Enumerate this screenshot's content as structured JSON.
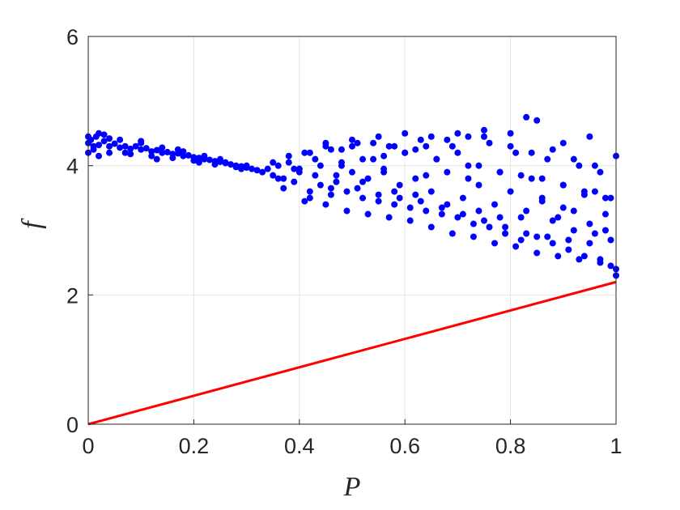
{
  "chart_data": {
    "type": "scatter",
    "xlabel": "P",
    "ylabel": "f",
    "xlim": [
      0,
      1
    ],
    "ylim": [
      0,
      6
    ],
    "x_ticks": [
      0,
      0.2,
      0.4,
      0.6,
      0.8,
      1
    ],
    "x_tick_labels": [
      "0",
      "0.2",
      "0.4",
      "0.6",
      "0.8",
      "1"
    ],
    "y_ticks": [
      0,
      2,
      4,
      6
    ],
    "y_tick_labels": [
      "0",
      "2",
      "4",
      "6"
    ],
    "grid": true,
    "legend": "none",
    "series": [
      {
        "kind": "scatter",
        "color": "#0000ff",
        "x": [
          0.0,
          0.005,
          0.01,
          0.015,
          0.02,
          0.03,
          0.04,
          0.05,
          0.06,
          0.07,
          0.08,
          0.09,
          0.1,
          0.11,
          0.12,
          0.13,
          0.14,
          0.15,
          0.16,
          0.17,
          0.18,
          0.19,
          0.2,
          0.21,
          0.22,
          0.23,
          0.24,
          0.25,
          0.26,
          0.27,
          0.28,
          0.29,
          0.3,
          0.31,
          0.32,
          0.33,
          0.0,
          0.01,
          0.02,
          0.03,
          0.04,
          0.06,
          0.08,
          0.1,
          0.12,
          0.14,
          0.16,
          0.18,
          0.2,
          0.22,
          0.24,
          0.26,
          0.28,
          0.3,
          0.0,
          0.02,
          0.04,
          0.07,
          0.1,
          0.13,
          0.17,
          0.21,
          0.25,
          0.29,
          0.34,
          0.35,
          0.36,
          0.37,
          0.38,
          0.39,
          0.4,
          0.41,
          0.42,
          0.43,
          0.44,
          0.45,
          0.46,
          0.47,
          0.48,
          0.49,
          0.5,
          0.51,
          0.52,
          0.53,
          0.54,
          0.55,
          0.56,
          0.57,
          0.58,
          0.59,
          0.6,
          0.61,
          0.62,
          0.63,
          0.64,
          0.65,
          0.66,
          0.67,
          0.68,
          0.69,
          0.7,
          0.71,
          0.72,
          0.73,
          0.74,
          0.75,
          0.76,
          0.77,
          0.78,
          0.79,
          0.8,
          0.81,
          0.82,
          0.83,
          0.84,
          0.85,
          0.86,
          0.87,
          0.88,
          0.89,
          0.9,
          0.91,
          0.92,
          0.93,
          0.94,
          0.95,
          0.96,
          0.97,
          0.98,
          0.99,
          1.0,
          0.35,
          0.37,
          0.39,
          0.41,
          0.43,
          0.45,
          0.47,
          0.49,
          0.51,
          0.53,
          0.55,
          0.57,
          0.59,
          0.61,
          0.63,
          0.65,
          0.67,
          0.69,
          0.71,
          0.73,
          0.75,
          0.77,
          0.79,
          0.81,
          0.83,
          0.85,
          0.87,
          0.89,
          0.91,
          0.93,
          0.95,
          0.97,
          0.99,
          0.36,
          0.38,
          0.4,
          0.42,
          0.44,
          0.46,
          0.48,
          0.5,
          0.52,
          0.54,
          0.56,
          0.58,
          0.6,
          0.62,
          0.64,
          0.66,
          0.68,
          0.7,
          0.72,
          0.74,
          0.76,
          0.78,
          0.8,
          0.82,
          0.84,
          0.86,
          0.88,
          0.9,
          0.92,
          0.94,
          0.96,
          0.98,
          1.0,
          0.45,
          0.5,
          0.55,
          0.6,
          0.65,
          0.7,
          0.75,
          0.8,
          0.85,
          0.9,
          0.95,
          1.0,
          0.4,
          0.48,
          0.56,
          0.64,
          0.72,
          0.78,
          0.83,
          0.86,
          0.9,
          0.94,
          0.97,
          0.99,
          0.42,
          0.46,
          0.52,
          0.58,
          0.62,
          0.68,
          0.74,
          0.82,
          0.88,
          0.92,
          0.96,
          0.98
        ],
        "y": [
          4.35,
          4.4,
          4.3,
          4.45,
          4.32,
          4.38,
          4.3,
          4.34,
          4.28,
          4.3,
          4.26,
          4.3,
          4.25,
          4.27,
          4.22,
          4.24,
          4.2,
          4.21,
          4.18,
          4.19,
          4.15,
          4.16,
          4.13,
          4.12,
          4.1,
          4.09,
          4.07,
          4.06,
          4.04,
          4.02,
          4.0,
          3.99,
          3.97,
          3.95,
          3.93,
          3.9,
          4.2,
          4.25,
          4.5,
          4.48,
          4.2,
          4.4,
          4.18,
          4.38,
          4.15,
          4.28,
          4.12,
          4.22,
          4.08,
          4.15,
          4.02,
          4.05,
          3.98,
          4.0,
          4.45,
          4.15,
          4.42,
          4.2,
          4.35,
          4.1,
          4.25,
          4.05,
          4.1,
          3.95,
          3.95,
          3.85,
          4.0,
          3.8,
          4.05,
          3.75,
          3.9,
          4.2,
          3.6,
          4.1,
          3.7,
          4.3,
          3.55,
          3.85,
          4.25,
          3.6,
          3.9,
          4.35,
          3.5,
          3.8,
          4.1,
          3.45,
          3.95,
          4.3,
          3.4,
          3.7,
          4.2,
          3.35,
          3.8,
          4.4,
          3.3,
          3.6,
          4.1,
          3.25,
          3.9,
          4.3,
          3.2,
          3.5,
          4.0,
          3.1,
          3.7,
          4.45,
          3.05,
          3.4,
          3.9,
          2.95,
          3.6,
          4.2,
          2.85,
          3.3,
          3.8,
          2.9,
          3.5,
          4.1,
          2.8,
          3.2,
          3.7,
          2.7,
          3.3,
          4.0,
          2.6,
          3.1,
          3.6,
          2.55,
          3.0,
          3.5,
          2.4,
          4.05,
          3.65,
          3.95,
          3.45,
          3.85,
          3.4,
          3.75,
          3.3,
          3.65,
          3.25,
          3.55,
          3.2,
          3.5,
          3.15,
          3.45,
          3.05,
          3.35,
          2.95,
          3.25,
          2.9,
          3.15,
          2.8,
          3.05,
          2.75,
          2.95,
          2.65,
          2.9,
          2.6,
          2.85,
          2.55,
          2.8,
          2.5,
          2.45,
          3.8,
          4.15,
          3.95,
          4.2,
          4.0,
          4.25,
          4.05,
          4.3,
          4.1,
          4.35,
          4.15,
          4.3,
          4.2,
          4.25,
          4.3,
          4.1,
          4.4,
          4.2,
          4.45,
          4.0,
          4.35,
          3.9,
          4.3,
          3.85,
          4.2,
          3.8,
          4.25,
          3.7,
          4.1,
          3.6,
          4.0,
          3.5,
          2.3,
          4.35,
          4.4,
          4.45,
          4.5,
          4.45,
          4.5,
          4.55,
          4.5,
          4.7,
          4.35,
          4.45,
          4.15,
          3.95,
          4.0,
          3.9,
          3.85,
          3.8,
          3.2,
          4.75,
          3.45,
          3.35,
          3.55,
          3.9,
          2.85,
          3.5,
          3.65,
          3.75,
          3.6,
          3.55,
          3.4,
          3.3,
          3.2,
          3.15,
          3.0,
          2.95,
          3.25
        ]
      },
      {
        "kind": "line",
        "color": "#ff0000",
        "x": [
          0,
          1
        ],
        "y": [
          0,
          2.2
        ]
      }
    ]
  }
}
